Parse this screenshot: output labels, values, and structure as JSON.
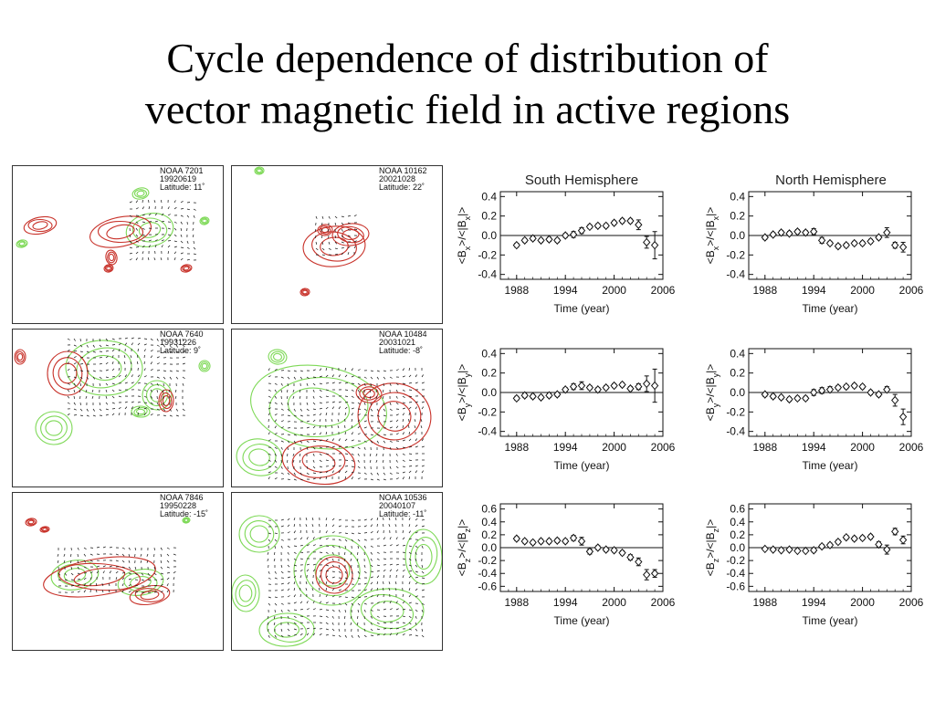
{
  "slide": {
    "title_line1": "Cycle dependence of distribution of",
    "title_line2": "vector magnetic field in active regions"
  },
  "colors": {
    "positive_contour": "#c8322a",
    "negative_contour": "#7ed957",
    "vector": "#111111"
  },
  "maps": [
    {
      "noaa": "NOAA 7201",
      "date": "19920619",
      "latitude": "Latitude: 11˚"
    },
    {
      "noaa": "NOAA 10162",
      "date": "20021028",
      "latitude": "Latitude: 22˚"
    },
    {
      "noaa": "NOAA 7640",
      "date": "19931226",
      "latitude": "Latitude: 9˚"
    },
    {
      "noaa": "NOAA 10484",
      "date": "20031021",
      "latitude": "Latitude: -8˚"
    },
    {
      "noaa": "NOAA 7846",
      "date": "19950228",
      "latitude": "Latitude: -15˚"
    },
    {
      "noaa": "NOAA 10536",
      "date": "20040107",
      "latitude": "Latitude: -11˚"
    }
  ],
  "chart_data": [
    {
      "type": "scatter",
      "title": "South Hemisphere",
      "xlabel": "Time (year)",
      "ylabel": "<Bx>/<|Bx|>",
      "xlim": [
        1986,
        2006
      ],
      "ylim": [
        -0.45,
        0.45
      ],
      "yticks": [
        "-0.4",
        "-0.2",
        "0.0",
        "0.2",
        "0.4"
      ],
      "xticks": [
        "1988",
        "1994",
        "2000",
        "2006"
      ],
      "x": [
        1988,
        1989,
        1990,
        1991,
        1992,
        1993,
        1994,
        1995,
        1996,
        1997,
        1998,
        1999,
        2000,
        2001,
        2002,
        2003,
        2004,
        2005
      ],
      "y": [
        -0.1,
        -0.05,
        -0.03,
        -0.05,
        -0.04,
        -0.05,
        0.0,
        0.01,
        0.05,
        0.09,
        0.1,
        0.1,
        0.13,
        0.15,
        0.15,
        0.11,
        -0.07,
        -0.1
      ],
      "err": [
        0.02,
        0.02,
        0.02,
        0.02,
        0.02,
        0.02,
        0.02,
        0.03,
        0.03,
        0.02,
        0.02,
        0.02,
        0.02,
        0.02,
        0.02,
        0.05,
        0.06,
        0.14
      ]
    },
    {
      "type": "scatter",
      "title": "North Hemisphere",
      "xlabel": "Time (year)",
      "ylabel": "<Bx>/<|Bx|>",
      "xlim": [
        1986,
        2006
      ],
      "ylim": [
        -0.45,
        0.45
      ],
      "yticks": [
        "-0.4",
        "-0.2",
        "0.0",
        "0.2",
        "0.4"
      ],
      "xticks": [
        "1988",
        "1994",
        "2000",
        "2006"
      ],
      "x": [
        1988,
        1989,
        1990,
        1991,
        1992,
        1993,
        1994,
        1995,
        1996,
        1997,
        1998,
        1999,
        2000,
        2001,
        2002,
        2003,
        2004,
        2005
      ],
      "y": [
        -0.02,
        0.01,
        0.03,
        0.02,
        0.04,
        0.03,
        0.04,
        -0.05,
        -0.08,
        -0.11,
        -0.1,
        -0.08,
        -0.08,
        -0.06,
        -0.02,
        0.03,
        -0.1,
        -0.12
      ],
      "err": [
        0.02,
        0.02,
        0.02,
        0.02,
        0.02,
        0.02,
        0.03,
        0.03,
        0.02,
        0.02,
        0.02,
        0.02,
        0.02,
        0.02,
        0.02,
        0.05,
        0.03,
        0.05
      ]
    },
    {
      "type": "scatter",
      "title": "",
      "xlabel": "Time (year)",
      "ylabel": "<By>/<|By|>",
      "xlim": [
        1986,
        2006
      ],
      "ylim": [
        -0.45,
        0.45
      ],
      "yticks": [
        "-0.4",
        "-0.2",
        "0.0",
        "0.2",
        "0.4"
      ],
      "xticks": [
        "1988",
        "1994",
        "2000",
        "2006"
      ],
      "x": [
        1988,
        1989,
        1990,
        1991,
        1992,
        1993,
        1994,
        1995,
        1996,
        1997,
        1998,
        1999,
        2000,
        2001,
        2002,
        2003,
        2004,
        2005
      ],
      "y": [
        -0.06,
        -0.03,
        -0.04,
        -0.05,
        -0.03,
        -0.02,
        0.03,
        0.06,
        0.07,
        0.05,
        0.03,
        0.05,
        0.07,
        0.08,
        0.04,
        0.06,
        0.09,
        0.07
      ],
      "err": [
        0.02,
        0.02,
        0.02,
        0.02,
        0.02,
        0.02,
        0.02,
        0.03,
        0.04,
        0.02,
        0.02,
        0.02,
        0.02,
        0.02,
        0.02,
        0.03,
        0.08,
        0.17
      ]
    },
    {
      "type": "scatter",
      "title": "",
      "xlabel": "Time (year)",
      "ylabel": "<By>/<|By|>",
      "xlim": [
        1986,
        2006
      ],
      "ylim": [
        -0.45,
        0.45
      ],
      "yticks": [
        "-0.4",
        "-0.2",
        "0.0",
        "0.2",
        "0.4"
      ],
      "xticks": [
        "1988",
        "1994",
        "2000",
        "2006"
      ],
      "x": [
        1988,
        1989,
        1990,
        1991,
        1992,
        1993,
        1994,
        1995,
        1996,
        1997,
        1998,
        1999,
        2000,
        2001,
        2002,
        2003,
        2004,
        2005
      ],
      "y": [
        -0.02,
        -0.04,
        -0.05,
        -0.07,
        -0.06,
        -0.06,
        0.0,
        0.02,
        0.03,
        0.05,
        0.06,
        0.07,
        0.06,
        0.0,
        -0.02,
        0.03,
        -0.08,
        -0.25
      ],
      "err": [
        0.02,
        0.02,
        0.02,
        0.02,
        0.02,
        0.02,
        0.03,
        0.03,
        0.03,
        0.02,
        0.02,
        0.02,
        0.02,
        0.02,
        0.02,
        0.03,
        0.06,
        0.08
      ]
    },
    {
      "type": "scatter",
      "title": "",
      "xlabel": "Time (year)",
      "ylabel": "<Bz>/<|Bz|>",
      "xlim": [
        1986,
        2006
      ],
      "ylim": [
        -0.68,
        0.68
      ],
      "yticks": [
        "-0.6",
        "-0.4",
        "-0.2",
        "0.0",
        "0.2",
        "0.4",
        "0.6"
      ],
      "xticks": [
        "1988",
        "1994",
        "2000",
        "2006"
      ],
      "x": [
        1988,
        1989,
        1990,
        1991,
        1992,
        1993,
        1994,
        1995,
        1996,
        1997,
        1998,
        1999,
        2000,
        2001,
        2002,
        2003,
        2004,
        2005
      ],
      "y": [
        0.14,
        0.1,
        0.08,
        0.1,
        0.1,
        0.11,
        0.1,
        0.15,
        0.1,
        -0.06,
        0.0,
        -0.03,
        -0.04,
        -0.08,
        -0.15,
        -0.22,
        -0.42,
        -0.4
      ],
      "err": [
        0.03,
        0.03,
        0.03,
        0.03,
        0.03,
        0.03,
        0.03,
        0.04,
        0.06,
        0.04,
        0.03,
        0.03,
        0.03,
        0.03,
        0.04,
        0.06,
        0.08,
        0.06
      ]
    },
    {
      "type": "scatter",
      "title": "",
      "xlabel": "Time (year)",
      "ylabel": "<Bz>/<|Bz|>",
      "xlim": [
        1986,
        2006
      ],
      "ylim": [
        -0.68,
        0.68
      ],
      "yticks": [
        "-0.6",
        "-0.4",
        "-0.2",
        "0.0",
        "0.2",
        "0.4",
        "0.6"
      ],
      "xticks": [
        "1988",
        "1994",
        "2000",
        "2006"
      ],
      "x": [
        1988,
        1989,
        1990,
        1991,
        1992,
        1993,
        1994,
        1995,
        1996,
        1997,
        1998,
        1999,
        2000,
        2001,
        2002,
        2003,
        2004,
        2005
      ],
      "y": [
        -0.02,
        -0.03,
        -0.04,
        -0.03,
        -0.05,
        -0.05,
        -0.04,
        0.02,
        0.04,
        0.09,
        0.16,
        0.14,
        0.15,
        0.17,
        0.05,
        -0.03,
        0.25,
        0.12
      ],
      "err": [
        0.02,
        0.02,
        0.02,
        0.02,
        0.02,
        0.02,
        0.03,
        0.03,
        0.03,
        0.03,
        0.03,
        0.03,
        0.03,
        0.03,
        0.04,
        0.07,
        0.05,
        0.06
      ]
    }
  ]
}
